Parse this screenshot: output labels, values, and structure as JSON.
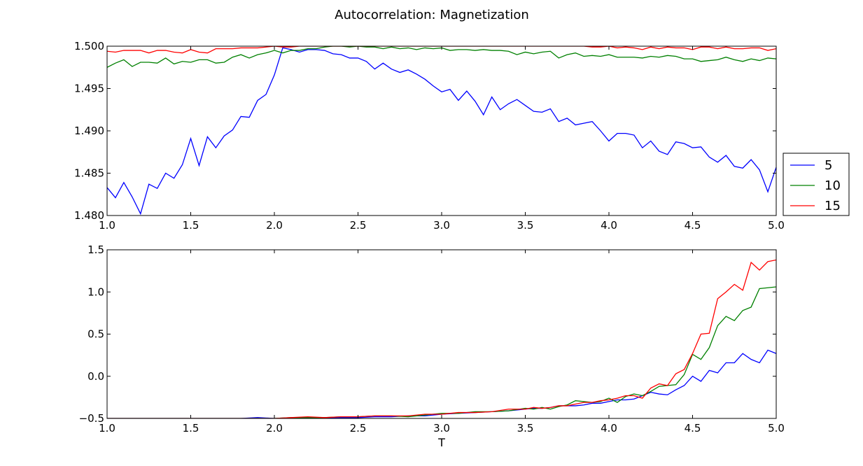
{
  "figure": {
    "title": "Autocorrelation: Magnetization"
  },
  "chart_data": [
    {
      "type": "line",
      "title": "",
      "xlabel": "",
      "ylabel": "",
      "xlim": [
        1.0,
        5.0
      ],
      "ylim": [
        1.48,
        1.5
      ],
      "xticks": [
        "1.0",
        "1.5",
        "2.0",
        "2.5",
        "3.0",
        "3.5",
        "4.0",
        "4.5",
        "5.0"
      ],
      "yticks": [
        "1.480",
        "1.485",
        "1.490",
        "1.495",
        "1.500"
      ],
      "legend": {
        "placement": "right",
        "entries": [
          "5",
          "10",
          "15"
        ]
      },
      "series": [
        {
          "name": "5",
          "color": "#0000ff",
          "x": [
            1.0,
            1.05,
            1.1,
            1.15,
            1.2,
            1.25,
            1.3,
            1.35,
            1.4,
            1.45,
            1.5,
            1.55,
            1.6,
            1.65,
            1.7,
            1.75,
            1.8,
            1.85,
            1.9,
            1.95,
            2.0,
            2.05,
            2.1,
            2.15,
            2.2,
            2.25,
            2.3,
            2.35,
            2.4,
            2.45,
            2.5,
            2.55,
            2.6,
            2.65,
            2.7,
            2.75,
            2.8,
            2.85,
            2.9,
            2.95,
            3.0,
            3.05,
            3.1,
            3.15,
            3.2,
            3.25,
            3.3,
            3.35,
            3.4,
            3.45,
            3.5,
            3.55,
            3.6,
            3.65,
            3.7,
            3.75,
            3.8,
            3.85,
            3.9,
            3.95,
            4.0,
            4.05,
            4.1,
            4.15,
            4.2,
            4.25,
            4.3,
            4.35,
            4.4,
            4.45,
            4.5,
            4.55,
            4.6,
            4.65,
            4.7,
            4.75,
            4.8,
            4.85,
            4.9,
            4.95,
            5.0
          ],
          "values": [
            1.4833,
            1.4821,
            1.4839,
            1.4822,
            1.4802,
            1.4837,
            1.4832,
            1.485,
            1.4844,
            1.486,
            1.4891,
            1.4859,
            1.4893,
            1.488,
            1.4894,
            1.4901,
            1.4917,
            1.4916,
            1.4936,
            1.4943,
            1.4966,
            1.4998,
            1.4996,
            1.4993,
            1.4996,
            1.4996,
            1.4995,
            1.4991,
            1.499,
            1.4986,
            1.4986,
            1.4982,
            1.4973,
            1.498,
            1.4973,
            1.4969,
            1.4972,
            1.4967,
            1.4961,
            1.4953,
            1.4946,
            1.4949,
            1.4936,
            1.4947,
            1.4935,
            1.4919,
            1.494,
            1.4925,
            1.4932,
            1.4937,
            1.493,
            1.4923,
            1.4922,
            1.4926,
            1.4911,
            1.4915,
            1.4907,
            1.4909,
            1.4911,
            1.49,
            1.4888,
            1.4897,
            1.4897,
            1.4895,
            1.488,
            1.4888,
            1.4876,
            1.4872,
            1.4887,
            1.4885,
            1.488,
            1.4881,
            1.4869,
            1.4863,
            1.4871,
            1.4858,
            1.4856,
            1.4866,
            1.4854,
            1.4828,
            1.4857
          ]
        },
        {
          "name": "10",
          "color": "#008000",
          "x": [
            1.0,
            1.05,
            1.1,
            1.15,
            1.2,
            1.25,
            1.3,
            1.35,
            1.4,
            1.45,
            1.5,
            1.55,
            1.6,
            1.65,
            1.7,
            1.75,
            1.8,
            1.85,
            1.9,
            1.95,
            2.0,
            2.05,
            2.1,
            2.15,
            2.2,
            2.25,
            2.3,
            2.35,
            2.4,
            2.45,
            2.5,
            2.55,
            2.6,
            2.65,
            2.7,
            2.75,
            2.8,
            2.85,
            2.9,
            2.95,
            3.0,
            3.05,
            3.1,
            3.15,
            3.2,
            3.25,
            3.3,
            3.35,
            3.4,
            3.45,
            3.5,
            3.55,
            3.6,
            3.65,
            3.7,
            3.75,
            3.8,
            3.85,
            3.9,
            3.95,
            4.0,
            4.05,
            4.1,
            4.15,
            4.2,
            4.25,
            4.3,
            4.35,
            4.4,
            4.45,
            4.5,
            4.55,
            4.6,
            4.65,
            4.7,
            4.75,
            4.8,
            4.85,
            4.9,
            4.95,
            5.0
          ],
          "values": [
            1.4975,
            1.498,
            1.4984,
            1.4976,
            1.4981,
            1.4981,
            1.498,
            1.4986,
            1.4979,
            1.4982,
            1.4981,
            1.4984,
            1.4984,
            1.498,
            1.4981,
            1.4987,
            1.499,
            1.4986,
            1.499,
            1.4992,
            1.4995,
            1.4992,
            1.4995,
            1.4995,
            1.4997,
            1.4997,
            1.4999,
            1.5,
            1.5,
            1.4999,
            1.5,
            1.4999,
            1.4999,
            1.4997,
            1.4999,
            1.4997,
            1.4998,
            1.4996,
            1.4998,
            1.4997,
            1.4998,
            1.4995,
            1.4996,
            1.4996,
            1.4995,
            1.4996,
            1.4995,
            1.4995,
            1.4994,
            1.499,
            1.4993,
            1.4991,
            1.4993,
            1.4994,
            1.4986,
            1.499,
            1.4992,
            1.4988,
            1.4989,
            1.4988,
            1.499,
            1.4987,
            1.4987,
            1.4987,
            1.4986,
            1.4988,
            1.4987,
            1.4989,
            1.4988,
            1.4985,
            1.4985,
            1.4982,
            1.4983,
            1.4984,
            1.4987,
            1.4984,
            1.4982,
            1.4985,
            1.4983,
            1.4986,
            1.4985
          ]
        },
        {
          "name": "15",
          "color": "#ff0000",
          "x": [
            1.0,
            1.05,
            1.1,
            1.15,
            1.2,
            1.25,
            1.3,
            1.35,
            1.4,
            1.45,
            1.5,
            1.55,
            1.6,
            1.65,
            1.7,
            1.75,
            1.8,
            1.85,
            1.9,
            1.95,
            2.0,
            2.05,
            2.1,
            2.15,
            2.2,
            2.25,
            2.3,
            2.35,
            2.4,
            2.45,
            2.5,
            2.55,
            2.6,
            2.65,
            2.7,
            2.75,
            2.8,
            2.85,
            2.9,
            2.95,
            3.0,
            3.05,
            3.1,
            3.15,
            3.2,
            3.25,
            3.3,
            3.35,
            3.4,
            3.45,
            3.5,
            3.55,
            3.6,
            3.65,
            3.7,
            3.75,
            3.8,
            3.85,
            3.9,
            3.95,
            4.0,
            4.05,
            4.1,
            4.15,
            4.2,
            4.25,
            4.3,
            4.35,
            4.4,
            4.45,
            4.5,
            4.55,
            4.6,
            4.65,
            4.7,
            4.75,
            4.8,
            4.85,
            4.9,
            4.95,
            5.0
          ],
          "values": [
            1.4994,
            1.4993,
            1.4995,
            1.4995,
            1.4995,
            1.4992,
            1.4995,
            1.4995,
            1.4993,
            1.4992,
            1.4996,
            1.4993,
            1.4992,
            1.4997,
            1.4997,
            1.4997,
            1.4998,
            1.4998,
            1.4998,
            1.4999,
            1.5,
            1.4999,
            1.4999,
            1.5,
            1.5,
            1.5,
            1.5,
            1.5,
            1.5,
            1.5,
            1.5,
            1.5,
            1.5,
            1.5,
            1.5,
            1.5,
            1.5,
            1.5,
            1.5,
            1.5,
            1.5,
            1.5,
            1.5,
            1.5,
            1.5,
            1.5,
            1.5,
            1.5,
            1.5,
            1.5,
            1.5,
            1.5,
            1.5,
            1.5,
            1.5,
            1.5,
            1.5,
            1.5,
            1.4999,
            1.4999,
            1.5,
            1.4998,
            1.4999,
            1.4998,
            1.4996,
            1.4999,
            1.4997,
            1.4999,
            1.4998,
            1.4998,
            1.4996,
            1.4999,
            1.4999,
            1.4997,
            1.4999,
            1.4997,
            1.4997,
            1.4998,
            1.4998,
            1.4995,
            1.4997
          ]
        }
      ]
    },
    {
      "type": "line",
      "title": "",
      "xlabel": "T",
      "ylabel": "",
      "xlim": [
        1.0,
        5.0
      ],
      "ylim": [
        -0.5,
        1.5
      ],
      "xticks": [
        "1.0",
        "1.5",
        "2.0",
        "2.5",
        "3.0",
        "3.5",
        "4.0",
        "4.5",
        "5.0"
      ],
      "yticks": [
        "−0.5",
        "0.0",
        "0.5",
        "1.0",
        "1.5"
      ],
      "series": [
        {
          "name": "5",
          "color": "#0000ff",
          "x": [
            1.0,
            1.1,
            1.2,
            1.3,
            1.4,
            1.5,
            1.6,
            1.7,
            1.8,
            1.9,
            2.0,
            2.1,
            2.2,
            2.3,
            2.4,
            2.5,
            2.6,
            2.7,
            2.8,
            2.9,
            3.0,
            3.1,
            3.2,
            3.3,
            3.4,
            3.5,
            3.55,
            3.6,
            3.65,
            3.7,
            3.75,
            3.8,
            3.85,
            3.9,
            3.95,
            4.0,
            4.05,
            4.1,
            4.15,
            4.2,
            4.25,
            4.3,
            4.35,
            4.4,
            4.45,
            4.5,
            4.55,
            4.6,
            4.65,
            4.7,
            4.75,
            4.8,
            4.85,
            4.9,
            4.95,
            5.0
          ],
          "values": [
            -0.5,
            -0.5,
            -0.5,
            -0.5,
            -0.5,
            -0.5,
            -0.5,
            -0.5,
            -0.5,
            -0.49,
            -0.5,
            -0.5,
            -0.49,
            -0.49,
            -0.49,
            -0.49,
            -0.48,
            -0.48,
            -0.47,
            -0.47,
            -0.45,
            -0.44,
            -0.43,
            -0.42,
            -0.41,
            -0.39,
            -0.38,
            -0.38,
            -0.37,
            -0.35,
            -0.35,
            -0.35,
            -0.34,
            -0.32,
            -0.32,
            -0.3,
            -0.28,
            -0.28,
            -0.27,
            -0.23,
            -0.19,
            -0.21,
            -0.22,
            -0.16,
            -0.11,
            0.0,
            -0.06,
            0.07,
            0.04,
            0.16,
            0.16,
            0.27,
            0.2,
            0.16,
            0.31,
            0.27
          ]
        },
        {
          "name": "10",
          "color": "#008000",
          "x": [
            1.0,
            1.1,
            1.2,
            1.3,
            1.4,
            1.5,
            1.6,
            1.7,
            1.8,
            1.9,
            2.0,
            2.1,
            2.2,
            2.3,
            2.4,
            2.5,
            2.6,
            2.7,
            2.8,
            2.9,
            3.0,
            3.1,
            3.2,
            3.3,
            3.4,
            3.5,
            3.55,
            3.6,
            3.65,
            3.7,
            3.75,
            3.8,
            3.85,
            3.9,
            3.95,
            4.0,
            4.05,
            4.1,
            4.15,
            4.2,
            4.25,
            4.3,
            4.35,
            4.4,
            4.45,
            4.5,
            4.55,
            4.6,
            4.65,
            4.7,
            4.75,
            4.8,
            4.85,
            4.9,
            4.95,
            5.0
          ],
          "values": [
            -0.5,
            -0.5,
            -0.5,
            -0.5,
            -0.5,
            -0.5,
            -0.5,
            -0.5,
            -0.5,
            -0.5,
            -0.5,
            -0.49,
            -0.49,
            -0.49,
            -0.48,
            -0.48,
            -0.47,
            -0.47,
            -0.48,
            -0.46,
            -0.44,
            -0.44,
            -0.42,
            -0.42,
            -0.41,
            -0.38,
            -0.39,
            -0.37,
            -0.39,
            -0.36,
            -0.34,
            -0.29,
            -0.3,
            -0.31,
            -0.3,
            -0.26,
            -0.31,
            -0.24,
            -0.21,
            -0.23,
            -0.18,
            -0.12,
            -0.11,
            -0.1,
            0.02,
            0.26,
            0.2,
            0.34,
            0.6,
            0.71,
            0.66,
            0.78,
            0.82,
            1.04,
            1.05,
            1.06
          ]
        },
        {
          "name": "15",
          "color": "#ff0000",
          "x": [
            1.0,
            1.1,
            1.2,
            1.3,
            1.4,
            1.5,
            1.6,
            1.7,
            1.8,
            1.9,
            2.0,
            2.1,
            2.2,
            2.3,
            2.4,
            2.5,
            2.6,
            2.7,
            2.8,
            2.9,
            3.0,
            3.1,
            3.2,
            3.3,
            3.4,
            3.5,
            3.55,
            3.6,
            3.65,
            3.7,
            3.75,
            3.8,
            3.85,
            3.9,
            3.95,
            4.0,
            4.05,
            4.1,
            4.15,
            4.2,
            4.25,
            4.3,
            4.35,
            4.4,
            4.45,
            4.5,
            4.55,
            4.6,
            4.65,
            4.7,
            4.75,
            4.8,
            4.85,
            4.9,
            4.95,
            5.0
          ],
          "values": [
            -0.5,
            -0.5,
            -0.5,
            -0.5,
            -0.5,
            -0.5,
            -0.5,
            -0.5,
            -0.5,
            -0.5,
            -0.5,
            -0.49,
            -0.48,
            -0.49,
            -0.48,
            -0.48,
            -0.47,
            -0.47,
            -0.47,
            -0.45,
            -0.45,
            -0.43,
            -0.43,
            -0.42,
            -0.39,
            -0.39,
            -0.37,
            -0.38,
            -0.37,
            -0.35,
            -0.35,
            -0.33,
            -0.31,
            -0.31,
            -0.29,
            -0.28,
            -0.26,
            -0.23,
            -0.23,
            -0.26,
            -0.14,
            -0.09,
            -0.11,
            0.03,
            0.08,
            0.27,
            0.5,
            0.51,
            0.92,
            1.0,
            1.09,
            1.02,
            1.35,
            1.26,
            1.36,
            1.38
          ]
        }
      ]
    }
  ]
}
